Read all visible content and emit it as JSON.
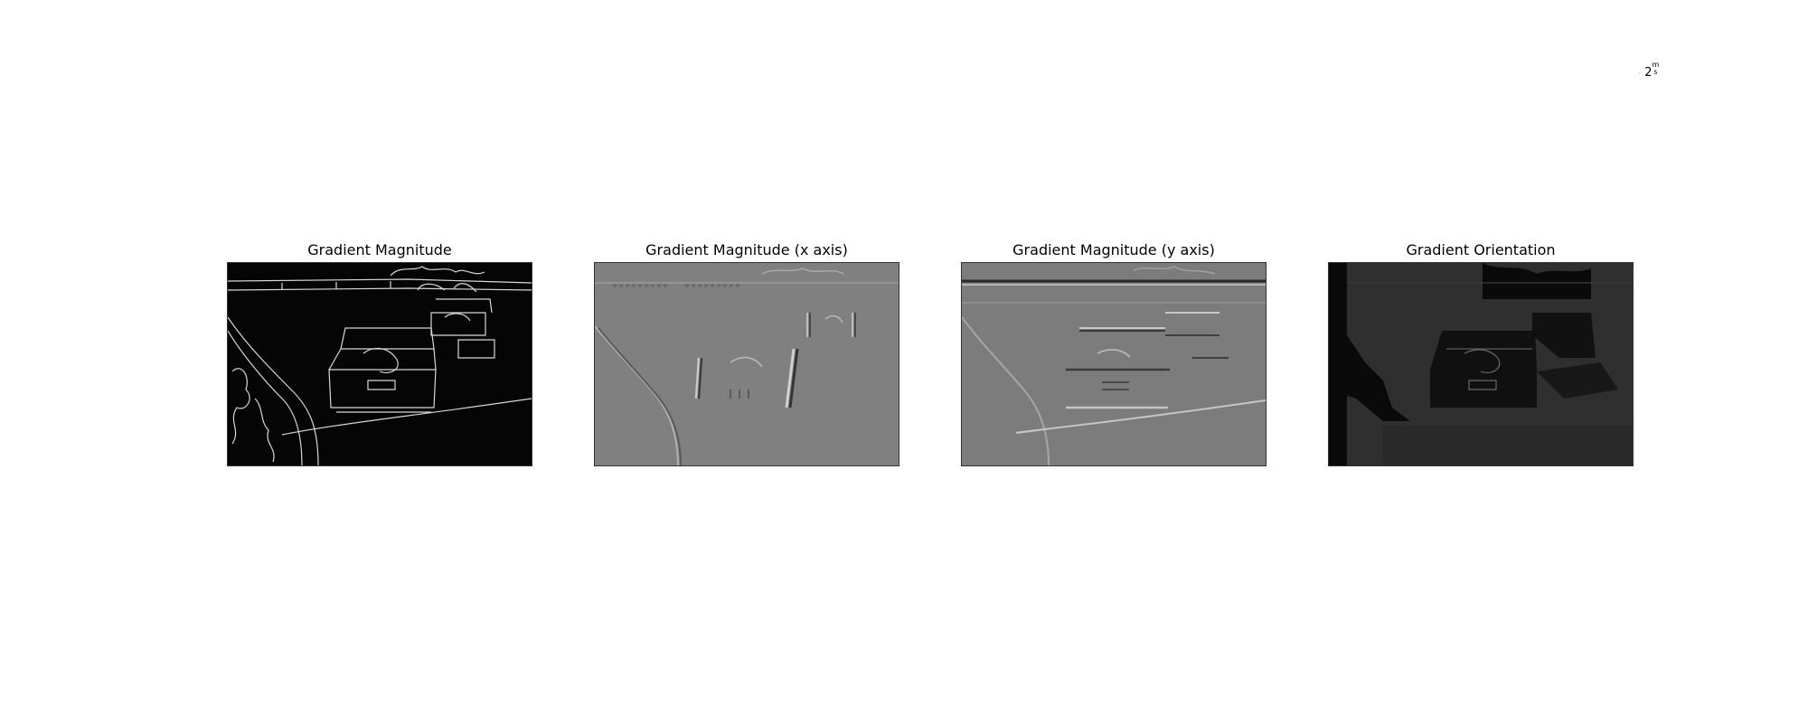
{
  "annotation": {
    "base": "2",
    "numerator": "m",
    "denominator": "s"
  },
  "panels": [
    {
      "title": "Gradient Magnitude"
    },
    {
      "title": "Gradient Magnitude (x axis)"
    },
    {
      "title": "Gradient Magnitude (y axis)"
    },
    {
      "title": "Gradient Orientation"
    }
  ],
  "colors": {
    "magnitude_bg": "#050505",
    "magnitude_edge": "#d8d8d8",
    "x_axis_bg": "#808080",
    "y_axis_bg": "#7c7c7c",
    "orientation_bg": "#2f2f2f",
    "orientation_dark": "#0a0a0a"
  }
}
